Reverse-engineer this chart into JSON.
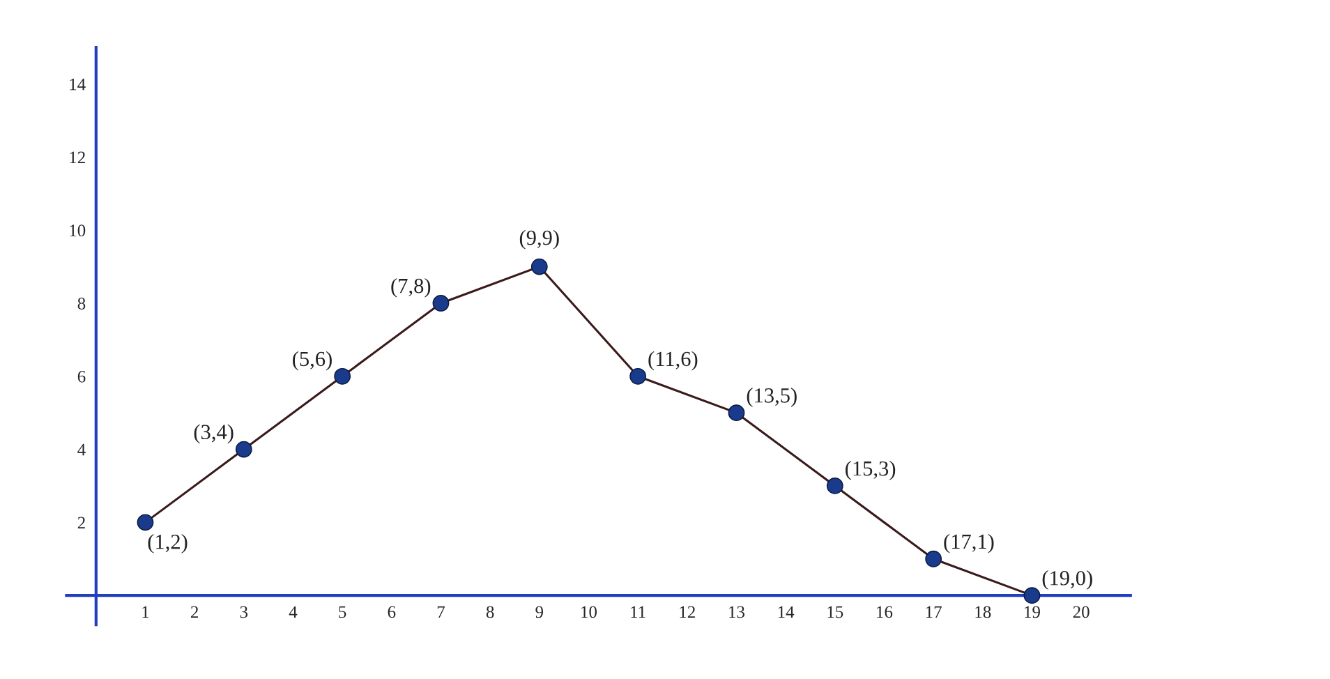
{
  "chart_data": {
    "type": "line",
    "x": [
      1,
      3,
      5,
      7,
      9,
      11,
      13,
      15,
      17,
      19
    ],
    "series": [
      {
        "color": "#1a3a8c",
        "values": [
          2,
          4,
          6,
          8,
          9,
          6,
          5,
          3,
          1,
          0
        ]
      }
    ],
    "annotations": [
      {
        "text": "(1,2)",
        "x": 1,
        "y": 2
      },
      {
        "text": "(3,4)",
        "x": 3,
        "y": 4
      },
      {
        "text": "(5,6)",
        "x": 5,
        "y": 6
      },
      {
        "text": "(7,8)",
        "x": 7,
        "y": 8
      },
      {
        "text": "(9,9)",
        "x": 9,
        "y": 9
      },
      {
        "text": "(11,6)",
        "x": 11,
        "y": 6
      },
      {
        "text": "(13,5)",
        "x": 13,
        "y": 5
      },
      {
        "text": "(15,3)",
        "x": 15,
        "y": 3
      },
      {
        "text": "(17,1)",
        "x": 17,
        "y": 1
      },
      {
        "text": "(19,0)",
        "x": 19,
        "y": 0
      }
    ],
    "xlim": [
      -0.6,
      21
    ],
    "ylim": [
      -0.8,
      15
    ],
    "xticks": [
      1,
      2,
      3,
      4,
      5,
      6,
      7,
      8,
      9,
      10,
      11,
      12,
      13,
      14,
      15,
      16,
      17,
      18,
      19,
      20
    ],
    "yticks": [
      2,
      4,
      6,
      8,
      10,
      12,
      14
    ],
    "marker": "circle",
    "line_style": "solid",
    "grid": false,
    "legend": false
  }
}
